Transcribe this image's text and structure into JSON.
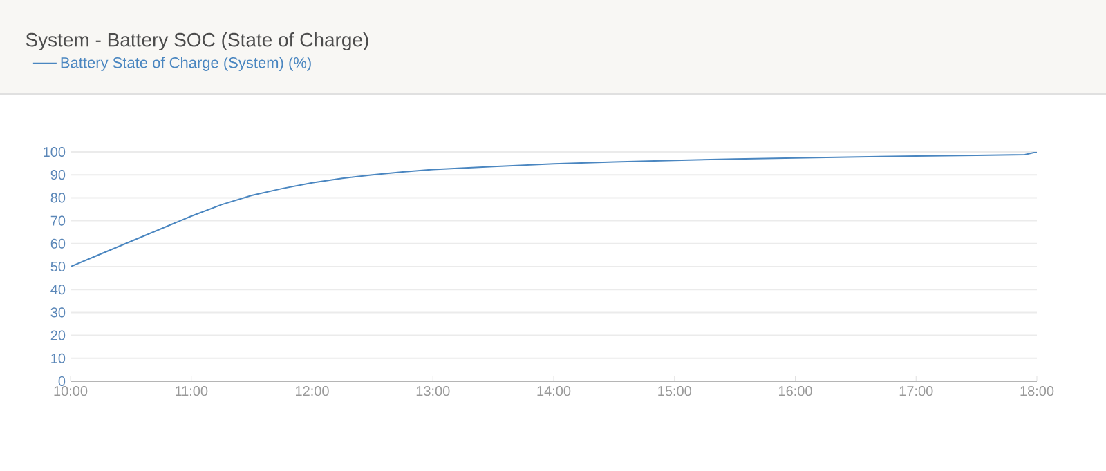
{
  "chart_data": {
    "type": "line",
    "title": "System - Battery SOC (State of Charge)",
    "x": [
      10,
      10.25,
      10.5,
      10.75,
      11,
      11.25,
      11.5,
      11.75,
      12,
      12.25,
      12.5,
      12.75,
      13,
      13.5,
      14,
      14.5,
      15,
      15.5,
      16,
      16.5,
      17,
      17.5,
      17.9,
      18
    ],
    "series": [
      {
        "name": "Battery State of Charge (System) (%)",
        "color": "#4a86c0",
        "values": [
          50,
          55.5,
          61,
          66.5,
          72,
          77,
          81,
          84,
          86.5,
          88.5,
          90,
          91.3,
          92.3,
          93.6,
          94.8,
          95.6,
          96.3,
          96.9,
          97.4,
          97.8,
          98.2,
          98.5,
          98.8,
          100
        ]
      }
    ],
    "xlim": [
      10,
      18
    ],
    "xticks": [
      {
        "value": 10,
        "label": "10:00"
      },
      {
        "value": 11,
        "label": "11:00"
      },
      {
        "value": 12,
        "label": "12:00"
      },
      {
        "value": 13,
        "label": "13:00"
      },
      {
        "value": 14,
        "label": "14:00"
      },
      {
        "value": 15,
        "label": "15:00"
      },
      {
        "value": 16,
        "label": "16:00"
      },
      {
        "value": 17,
        "label": "17:00"
      },
      {
        "value": 18,
        "label": "18:00"
      }
    ],
    "ylim": [
      0,
      100
    ],
    "yticks": [
      0,
      10,
      20,
      30,
      40,
      50,
      60,
      70,
      80,
      90,
      100
    ],
    "grid": "y",
    "legend": "top left"
  }
}
